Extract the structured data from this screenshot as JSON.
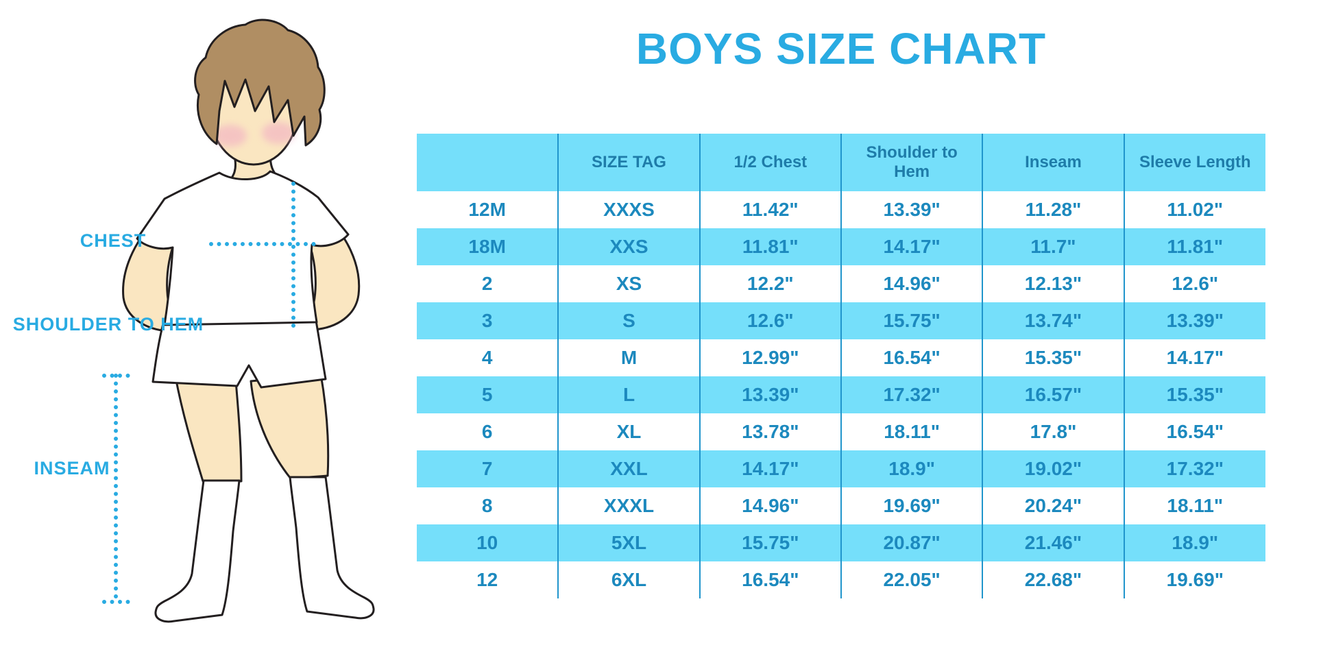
{
  "title": "BOYS SIZE CHART",
  "diagram": {
    "labels": {
      "chest": "CHEST",
      "shoulder_to_hem": "SHOULDER TO HEM",
      "inseam": "INSEAM"
    }
  },
  "chart_data": {
    "type": "table",
    "title": "BOYS SIZE CHART",
    "columns": [
      "",
      "SIZE TAG",
      "1/2 Chest",
      "Shoulder to Hem",
      "Inseam",
      "Sleeve Length"
    ],
    "rows": [
      [
        "12M",
        "XXXS",
        "11.42\"",
        "13.39\"",
        "11.28\"",
        "11.02\""
      ],
      [
        "18M",
        "XXS",
        "11.81\"",
        "14.17\"",
        "11.7\"",
        "11.81\""
      ],
      [
        "2",
        "XS",
        "12.2\"",
        "14.96\"",
        "12.13\"",
        "12.6\""
      ],
      [
        "3",
        "S",
        "12.6\"",
        "15.75\"",
        "13.74\"",
        "13.39\""
      ],
      [
        "4",
        "M",
        "12.99\"",
        "16.54\"",
        "15.35\"",
        "14.17\""
      ],
      [
        "5",
        "L",
        "13.39\"",
        "17.32\"",
        "16.57\"",
        "15.35\""
      ],
      [
        "6",
        "XL",
        "13.78\"",
        "18.11\"",
        "17.8\"",
        "16.54\""
      ],
      [
        "7",
        "XXL",
        "14.17\"",
        "18.9\"",
        "19.02\"",
        "17.32\""
      ],
      [
        "8",
        "XXXL",
        "14.96\"",
        "19.69\"",
        "20.24\"",
        "18.11\""
      ],
      [
        "10",
        "5XL",
        "15.75\"",
        "20.87\"",
        "21.46\"",
        "18.9\""
      ],
      [
        "12",
        "6XL",
        "16.54\"",
        "22.05\"",
        "22.68\"",
        "19.69\""
      ]
    ],
    "units": "inches",
    "row_striping": "alternating white and light cyan, header cyan",
    "legend_position": "none",
    "measurement_labels": [
      "CHEST",
      "SHOULDER TO HEM",
      "INSEAM"
    ]
  },
  "colors": {
    "accent_blue": "#29ABE2",
    "stripe_cyan": "#75DFFA",
    "divider_blue": "#2095CC",
    "header_text": "#1E7CA9",
    "cell_text": "#1C89BE",
    "hair_brown": "#B08E63",
    "skin": "#FAE6C1",
    "cheek_pink": "#F2AFC4",
    "outline": "#231F20"
  }
}
